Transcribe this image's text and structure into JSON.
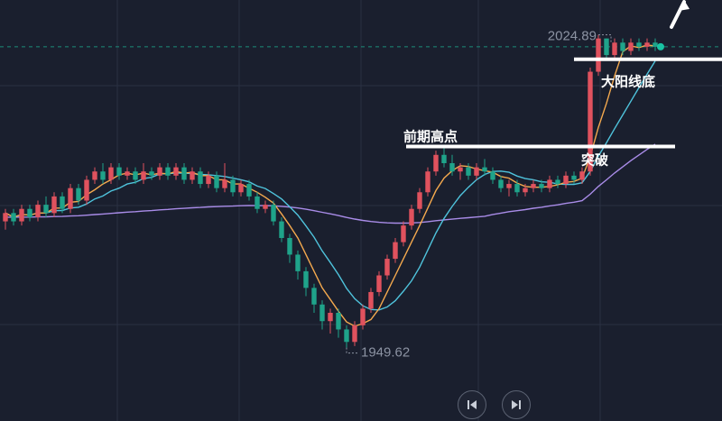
{
  "chart_data": {
    "type": "candlestick",
    "title": "",
    "ylim": [
      1940,
      2030
    ],
    "high_label": "2024.89",
    "low_label": "1949.62",
    "colors": {
      "up": "#e0525e",
      "down": "#1fa38a",
      "ma_short": "#f4a94e",
      "ma_mid": "#4fc3dc",
      "ma_long": "#a98ce8",
      "annotation": "#ffffff",
      "last_dot": "#19c3a3",
      "dashed_line": "#1c8c7a"
    },
    "annotations": [
      {
        "label": "前期高点",
        "price": 1998
      },
      {
        "label": "突破",
        "price": 1998
      },
      {
        "label": "大阳线底",
        "price": 2019
      }
    ],
    "candles": [
      [
        1980,
        1982,
        1978,
        1983
      ],
      [
        1982,
        1980,
        1979,
        1983
      ],
      [
        1980,
        1983,
        1979,
        1984
      ],
      [
        1983,
        1981,
        1980,
        1984
      ],
      [
        1981,
        1984,
        1980,
        1985
      ],
      [
        1984,
        1982,
        1981,
        1986
      ],
      [
        1982,
        1986,
        1981,
        1987
      ],
      [
        1986,
        1983,
        1982,
        1987
      ],
      [
        1983,
        1988,
        1982,
        1989
      ],
      [
        1988,
        1985,
        1984,
        1989
      ],
      [
        1985,
        1990,
        1984,
        1991
      ],
      [
        1990,
        1992,
        1989,
        1993
      ],
      [
        1992,
        1990,
        1989,
        1994
      ],
      [
        1990,
        1993,
        1989,
        1994
      ],
      [
        1993,
        1991,
        1990,
        1994
      ],
      [
        1991,
        1992,
        1990,
        1993
      ],
      [
        1992,
        1990,
        1989,
        1993
      ],
      [
        1990,
        1992,
        1989,
        1994
      ],
      [
        1992,
        1991,
        1990,
        1993
      ],
      [
        1991,
        1993,
        1990,
        1994
      ],
      [
        1993,
        1991,
        1990,
        1994
      ],
      [
        1991,
        1993,
        1990,
        1994
      ],
      [
        1993,
        1990,
        1989,
        1994
      ],
      [
        1990,
        1992,
        1989,
        1993
      ],
      [
        1992,
        1989,
        1988,
        1993
      ],
      [
        1989,
        1991,
        1988,
        1992
      ],
      [
        1991,
        1988,
        1987,
        1992
      ],
      [
        1988,
        1990,
        1987,
        1994
      ],
      [
        1990,
        1987,
        1986,
        1991
      ],
      [
        1987,
        1989,
        1986,
        1990
      ],
      [
        1989,
        1986,
        1985,
        1990
      ],
      [
        1986,
        1983,
        1982,
        1987
      ],
      [
        1983,
        1984,
        1982,
        1985
      ],
      [
        1984,
        1980,
        1979,
        1985
      ],
      [
        1980,
        1976,
        1975,
        1981
      ],
      [
        1976,
        1972,
        1970,
        1977
      ],
      [
        1972,
        1968,
        1966,
        1973
      ],
      [
        1968,
        1964,
        1962,
        1969
      ],
      [
        1964,
        1960,
        1958,
        1965
      ],
      [
        1960,
        1956,
        1954,
        1961
      ],
      [
        1956,
        1958,
        1953,
        1959
      ],
      [
        1958,
        1954,
        1952,
        1959
      ],
      [
        1954,
        1951,
        1949.62,
        1955
      ],
      [
        1951,
        1955,
        1950,
        1956
      ],
      [
        1955,
        1959,
        1954,
        1960
      ],
      [
        1959,
        1963,
        1958,
        1964
      ],
      [
        1963,
        1967,
        1962,
        1968
      ],
      [
        1967,
        1971,
        1966,
        1972
      ],
      [
        1971,
        1975,
        1970,
        1976
      ],
      [
        1975,
        1979,
        1974,
        1980
      ],
      [
        1979,
        1983,
        1978,
        1984
      ],
      [
        1983,
        1987,
        1982,
        1988
      ],
      [
        1987,
        1992,
        1986,
        1993
      ],
      [
        1992,
        1996,
        1991,
        1997
      ],
      [
        1996,
        1994,
        1993,
        1998
      ],
      [
        1994,
        1992,
        1991,
        1996
      ],
      [
        1992,
        1993,
        1990,
        1994
      ],
      [
        1993,
        1991,
        1990,
        1994
      ],
      [
        1991,
        1993,
        1990,
        1994
      ],
      [
        1993,
        1992,
        1991,
        1995
      ],
      [
        1992,
        1990,
        1989,
        1993
      ],
      [
        1990,
        1988,
        1987,
        1991
      ],
      [
        1988,
        1989,
        1986,
        1990
      ],
      [
        1989,
        1987,
        1986,
        1990
      ],
      [
        1987,
        1988,
        1986,
        1989
      ],
      [
        1988,
        1989,
        1987,
        1990
      ],
      [
        1989,
        1988,
        1987,
        1990
      ],
      [
        1988,
        1990,
        1987,
        1991
      ],
      [
        1990,
        1989,
        1988,
        1991
      ],
      [
        1989,
        1991,
        1988,
        1992
      ],
      [
        1991,
        1990,
        1989,
        1992
      ],
      [
        1990,
        1992,
        1989,
        1993
      ],
      [
        1992,
        2016,
        1991,
        2017
      ],
      [
        2016,
        2024,
        2015,
        2024.89
      ],
      [
        2024,
        2020,
        2019,
        2024
      ],
      [
        2020,
        2023,
        2019,
        2024
      ],
      [
        2023,
        2021,
        2020,
        2024
      ],
      [
        2021,
        2023,
        2020,
        2024
      ],
      [
        2023,
        2022,
        2021,
        2024
      ],
      [
        2022,
        2023,
        2021,
        2024
      ],
      [
        2023,
        2022,
        2021,
        2024
      ]
    ]
  }
}
